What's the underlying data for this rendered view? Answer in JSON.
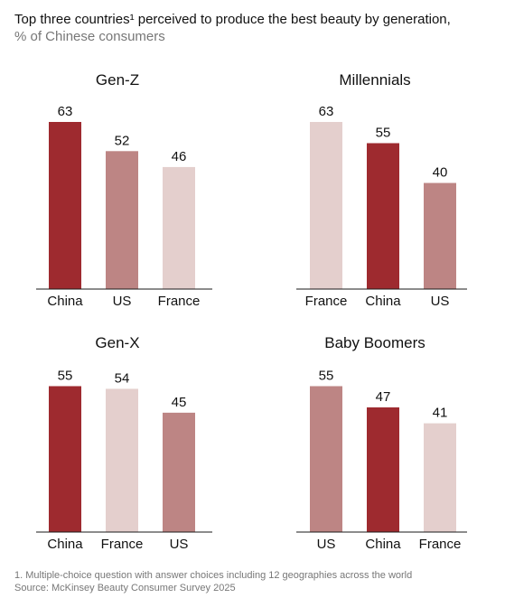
{
  "header": {
    "title": "Top three countries¹ perceived to produce the best beauty by generation,",
    "subtitle": "% of Chinese consumers"
  },
  "colors": {
    "China": "#9e2a2f",
    "US": "#bd8584",
    "France": "#e4cfcd",
    "axis": "#1a1a1a"
  },
  "chart_data": [
    {
      "type": "bar",
      "title": "Gen-Z",
      "categories": [
        "China",
        "US",
        "France"
      ],
      "values": [
        63,
        52,
        46
      ],
      "ylim": [
        0,
        63
      ]
    },
    {
      "type": "bar",
      "title": "Millennials",
      "categories": [
        "France",
        "China",
        "US"
      ],
      "values": [
        63,
        55,
        40
      ],
      "ylim": [
        0,
        63
      ]
    },
    {
      "type": "bar",
      "title": "Gen-X",
      "categories": [
        "China",
        "France",
        "US"
      ],
      "values": [
        55,
        54,
        45
      ],
      "ylim": [
        0,
        63
      ]
    },
    {
      "type": "bar",
      "title": "Baby Boomers",
      "categories": [
        "US",
        "China",
        "France"
      ],
      "values": [
        55,
        47,
        41
      ],
      "ylim": [
        0,
        63
      ]
    }
  ],
  "footer": {
    "note": "1. Multiple-choice question with answer choices including 12 geographies across the world",
    "source": "Source: McKinsey Beauty Consumer Survey 2025"
  }
}
